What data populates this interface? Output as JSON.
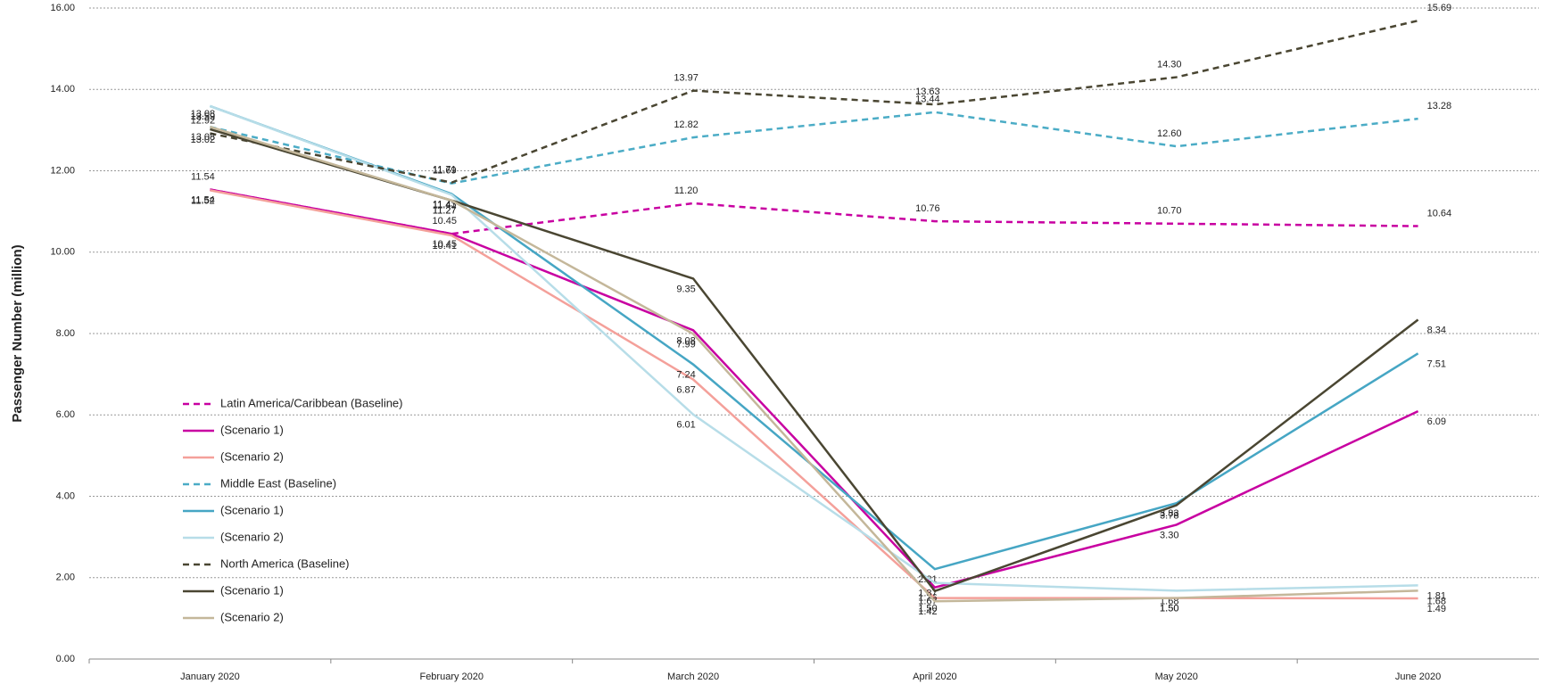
{
  "chart_data": {
    "type": "line",
    "y_label": "Passenger Number (million)",
    "categories": [
      "January 2020",
      "February 2020",
      "March 2020",
      "April 2020",
      "May 2020",
      "June 2020"
    ],
    "ylim": [
      0,
      16
    ],
    "yticks": [
      {
        "value": 0,
        "label": "0.00"
      },
      {
        "value": 2,
        "label": "2.00"
      },
      {
        "value": 4,
        "label": "4.00"
      },
      {
        "value": 6,
        "label": "6.00"
      },
      {
        "value": 8,
        "label": "8.00"
      },
      {
        "value": 10,
        "label": "10.00"
      },
      {
        "value": 12,
        "label": "12.00"
      },
      {
        "value": 14,
        "label": "14.00"
      },
      {
        "value": 16,
        "label": "16.00"
      }
    ],
    "grid": true,
    "legend": "left",
    "series": [
      {
        "name": "Latin America/Caribbean (Baseline)",
        "color": "#c800a1",
        "dashed": true,
        "values": [
          11.54,
          10.45,
          11.2,
          10.76,
          10.7,
          10.64
        ],
        "value_labels": [
          "11.54",
          "10.45",
          "11.20",
          "10.76",
          "10.70",
          "10.64"
        ]
      },
      {
        "name": "(Scenario 1)",
        "color": "#c800a1",
        "dashed": false,
        "values": [
          11.54,
          10.45,
          8.08,
          1.76,
          3.3,
          6.09
        ],
        "value_labels": [
          "11.54",
          "10.45",
          "8.08",
          "1.76",
          "3.30",
          "6.09"
        ]
      },
      {
        "name": "(Scenario 2)",
        "color": "#f4a09a",
        "dashed": false,
        "values": [
          11.52,
          10.41,
          6.87,
          1.5,
          1.5,
          1.49
        ],
        "value_labels": [
          "11.52",
          "10.41",
          "6.87",
          "1.50",
          "1.50",
          "1.49"
        ]
      },
      {
        "name": "Middle East (Baseline)",
        "color": "#4bacc6",
        "dashed": true,
        "values": [
          13.08,
          11.69,
          12.82,
          13.44,
          12.6,
          13.28
        ],
        "value_labels": [
          "13.08",
          "11.69",
          "12.82",
          "13.44",
          "12.60",
          "13.28"
        ]
      },
      {
        "name": "(Scenario 1)",
        "color": "#46a6c4",
        "dashed": false,
        "values": [
          13.59,
          11.43,
          7.24,
          2.21,
          3.83,
          7.51
        ],
        "value_labels": [
          "13.59",
          "11.43",
          "7.24",
          "2.21",
          "3.83",
          "7.51"
        ]
      },
      {
        "name": "(Scenario 2)",
        "color": "#b7dde8",
        "dashed": false,
        "values": [
          13.59,
          11.41,
          6.01,
          1.87,
          1.68,
          1.81
        ],
        "value_labels": [
          "13.59",
          "11.41",
          "6.01",
          "1.87",
          "1.68",
          "1.81"
        ]
      },
      {
        "name": "North America (Baseline)",
        "color": "#4a4632",
        "dashed": true,
        "values": [
          12.92,
          11.71,
          13.97,
          13.63,
          14.3,
          15.69
        ],
        "value_labels": [
          "12.92",
          "11.71",
          "13.97",
          "13.63",
          "14.30",
          "15.69"
        ]
      },
      {
        "name": "(Scenario 1)",
        "color": "#4a4632",
        "dashed": false,
        "values": [
          13.02,
          11.27,
          9.35,
          1.67,
          3.78,
          8.34
        ],
        "value_labels": [
          "13.02",
          "11.27",
          "9.35",
          "1.67",
          "3.78",
          "8.34"
        ]
      },
      {
        "name": "(Scenario 2)",
        "color": "#c4b79a",
        "dashed": false,
        "values": [
          13.08,
          11.27,
          7.99,
          1.42,
          1.5,
          1.68
        ],
        "value_labels": [
          "13.08",
          "11.27",
          "7.99",
          "1.42",
          "1.50",
          "1.68"
        ]
      }
    ]
  }
}
